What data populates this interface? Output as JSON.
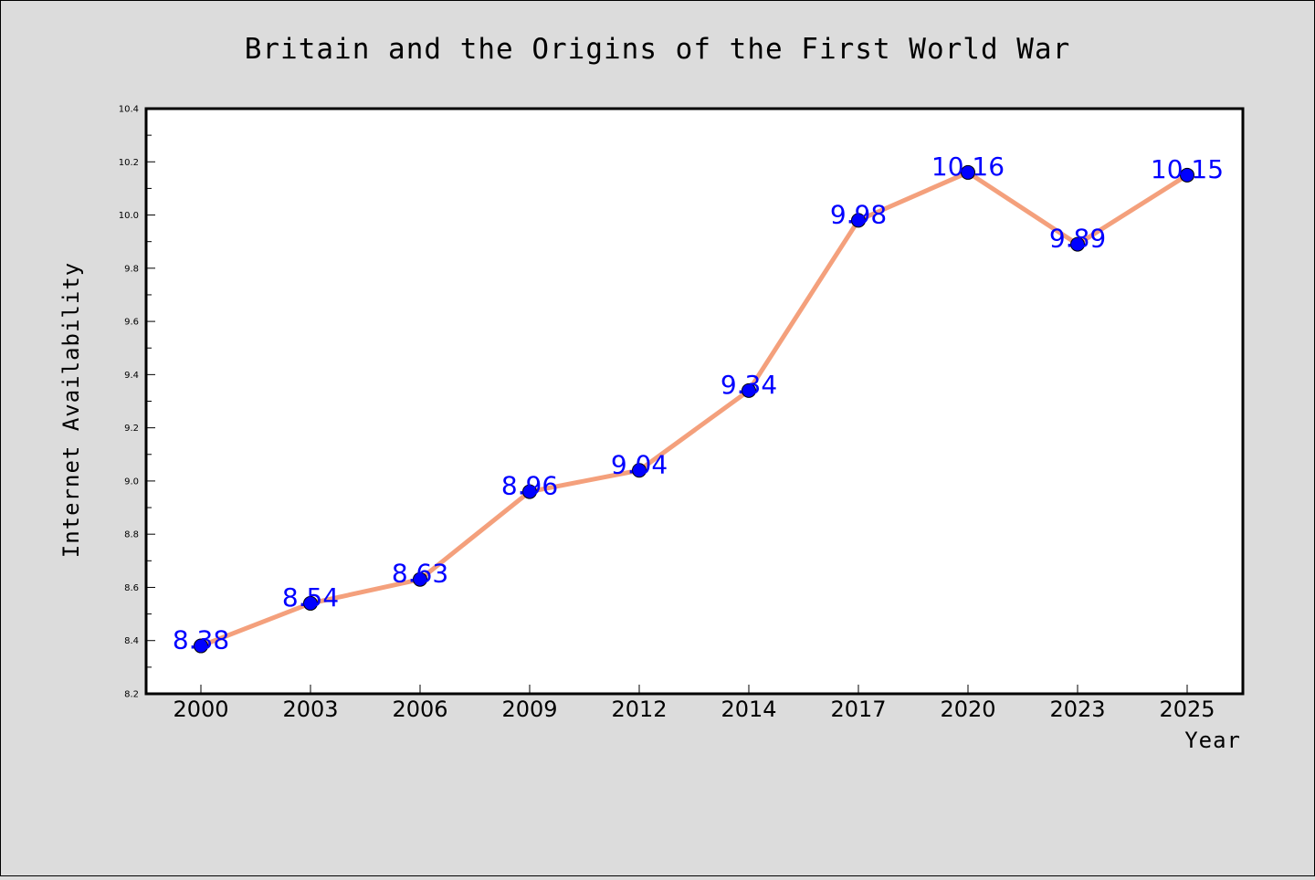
{
  "chart_data": {
    "type": "line",
    "title": "Britain and the Origins of the First World War",
    "xlabel": "Year",
    "ylabel": "Internet Availability",
    "categories": [
      "2000",
      "2003",
      "2006",
      "2009",
      "2012",
      "2014",
      "2017",
      "2020",
      "2023",
      "2025"
    ],
    "series": [
      {
        "values": [
          8.38,
          8.54,
          8.63,
          8.96,
          9.04,
          9.34,
          9.98,
          10.16,
          9.89,
          10.15
        ],
        "labels": [
          "8.38",
          "8.54",
          "8.63",
          "8.96",
          "9.04",
          "9.34",
          "9.98",
          "10.16",
          "9.89",
          "10.15"
        ]
      }
    ],
    "ylim": [
      8.2,
      10.4
    ],
    "yticks": [
      "8.2",
      "8.4",
      "8.6",
      "8.8",
      "9.0",
      "9.2",
      "9.4",
      "9.6",
      "9.8",
      "10.0",
      "10.2",
      "10.4"
    ],
    "grid": false,
    "colors": {
      "background": "#dcdcdc",
      "plot_background": "#ffffff",
      "line": "#f4a07c",
      "marker": "#0000ff",
      "data_label": "#0000ff"
    }
  }
}
